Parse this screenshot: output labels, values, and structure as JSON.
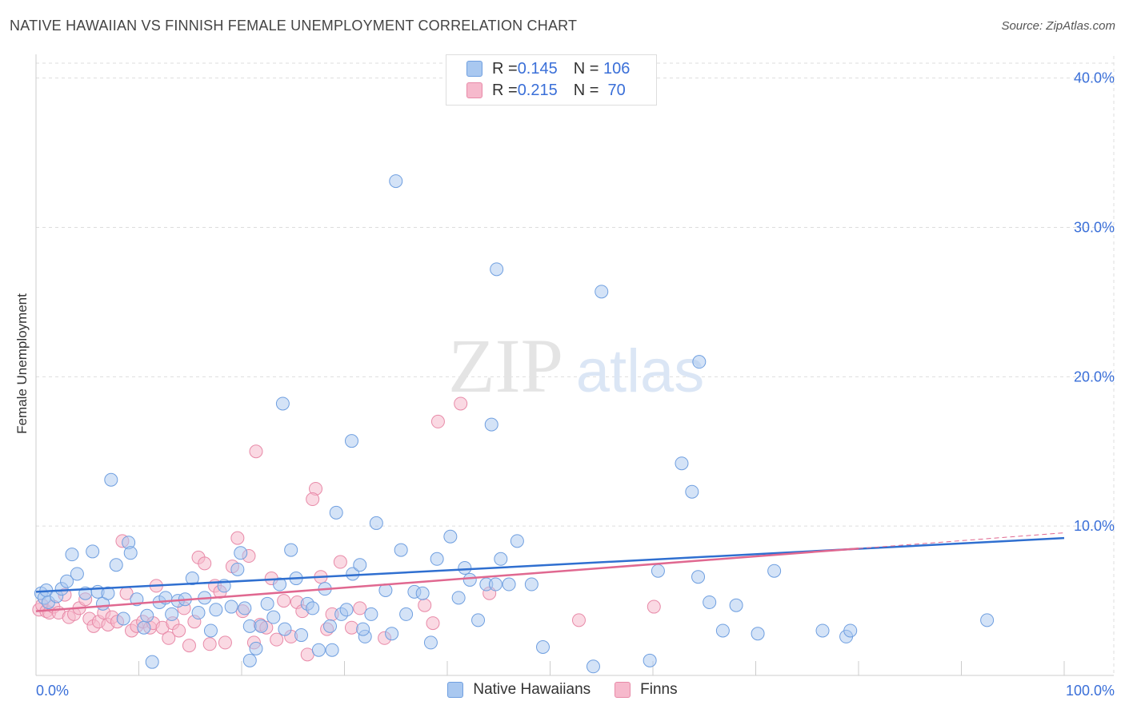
{
  "title": "NATIVE HAWAIIAN VS FINNISH FEMALE UNEMPLOYMENT CORRELATION CHART",
  "source": "Source: ZipAtlas.com",
  "watermark": {
    "zip": "ZIP",
    "atlas": "atlas"
  },
  "legend": {
    "rows": [
      {
        "r_label": "R = ",
        "r_value": "0.145",
        "n_label": "N = ",
        "n_value": "106",
        "color": "#a9c8f0",
        "border": "#6f9fe0"
      },
      {
        "r_label": "R = ",
        "r_value": "0.215",
        "n_label": "N = ",
        "n_value": " 70",
        "color": "#f6b9cc",
        "border": "#e88aa8"
      }
    ]
  },
  "colors": {
    "blue_fill": "#a9c8f0",
    "blue_stroke": "#6f9fe0",
    "blue_line": "#2f6fd0",
    "pink_fill": "#f6b9cc",
    "pink_stroke": "#e88aa8",
    "pink_line": "#e06890",
    "tick_label": "#3a6fd8",
    "grid": "#dddddd"
  },
  "chart_data": {
    "type": "scatter",
    "title": "NATIVE HAWAIIAN VS FINNISH FEMALE UNEMPLOYMENT CORRELATION CHART",
    "xlabel": "",
    "ylabel": "Female Unemployment",
    "xlim": [
      0,
      100
    ],
    "ylim": [
      0,
      41
    ],
    "x_tick_labels": [
      "0.0%",
      "100.0%"
    ],
    "y_ticks": [
      10,
      20,
      30,
      40
    ],
    "y_tick_labels": [
      "10.0%",
      "20.0%",
      "30.0%",
      "40.0%"
    ],
    "grid": true,
    "legend_position": "bottom",
    "series": [
      {
        "name": "Native Hawaiians",
        "r": 0.145,
        "n": 106,
        "trend": {
          "x": [
            0,
            100
          ],
          "y": [
            5.6,
            9.2
          ]
        },
        "points": [
          [
            0.5,
            5.5
          ],
          [
            0.8,
            5.2
          ],
          [
            1.0,
            5.7
          ],
          [
            1.2,
            4.9
          ],
          [
            2.0,
            5.3
          ],
          [
            2.5,
            5.8
          ],
          [
            3.0,
            6.3
          ],
          [
            3.5,
            8.1
          ],
          [
            4.0,
            6.8
          ],
          [
            4.8,
            5.5
          ],
          [
            5.5,
            8.3
          ],
          [
            6.0,
            5.6
          ],
          [
            6.5,
            4.8
          ],
          [
            7.0,
            5.5
          ],
          [
            7.3,
            13.1
          ],
          [
            7.8,
            7.4
          ],
          [
            8.5,
            3.8
          ],
          [
            9.0,
            8.9
          ],
          [
            9.2,
            8.2
          ],
          [
            9.8,
            5.1
          ],
          [
            10.5,
            3.2
          ],
          [
            10.8,
            4.0
          ],
          [
            11.3,
            0.9
          ],
          [
            12.0,
            4.9
          ],
          [
            12.6,
            5.2
          ],
          [
            13.2,
            4.1
          ],
          [
            13.8,
            5.0
          ],
          [
            14.5,
            5.1
          ],
          [
            15.2,
            6.5
          ],
          [
            15.8,
            4.2
          ],
          [
            16.4,
            5.2
          ],
          [
            17.0,
            3.0
          ],
          [
            17.5,
            4.4
          ],
          [
            18.3,
            6.0
          ],
          [
            19.0,
            4.6
          ],
          [
            19.6,
            7.1
          ],
          [
            19.9,
            8.2
          ],
          [
            20.3,
            4.5
          ],
          [
            20.8,
            3.3
          ],
          [
            21.4,
            1.8
          ],
          [
            21.9,
            3.3
          ],
          [
            22.5,
            4.8
          ],
          [
            23.1,
            3.9
          ],
          [
            23.7,
            6.1
          ],
          [
            24.2,
            3.1
          ],
          [
            24.8,
            8.4
          ],
          [
            25.3,
            6.5
          ],
          [
            25.8,
            2.7
          ],
          [
            26.4,
            4.8
          ],
          [
            26.9,
            4.5
          ],
          [
            27.5,
            1.7
          ],
          [
            28.1,
            5.8
          ],
          [
            28.6,
            3.3
          ],
          [
            29.2,
            10.9
          ],
          [
            29.7,
            4.1
          ],
          [
            30.2,
            4.4
          ],
          [
            30.8,
            6.8
          ],
          [
            31.5,
            7.4
          ],
          [
            32.0,
            2.6
          ],
          [
            32.6,
            4.1
          ],
          [
            24.0,
            18.2
          ],
          [
            31.8,
            3.1
          ],
          [
            33.1,
            10.2
          ],
          [
            34.0,
            5.7
          ],
          [
            34.6,
            2.8
          ],
          [
            35.5,
            8.4
          ],
          [
            36.0,
            4.1
          ],
          [
            36.8,
            5.6
          ],
          [
            37.6,
            5.5
          ],
          [
            38.4,
            2.2
          ],
          [
            39.0,
            7.8
          ],
          [
            40.3,
            9.3
          ],
          [
            41.1,
            5.2
          ],
          [
            41.7,
            7.2
          ],
          [
            42.2,
            6.4
          ],
          [
            43.0,
            3.7
          ],
          [
            43.8,
            6.1
          ],
          [
            44.7,
            6.1
          ],
          [
            45.2,
            7.8
          ],
          [
            46.0,
            6.1
          ],
          [
            46.8,
            9.0
          ],
          [
            48.2,
            6.1
          ],
          [
            49.3,
            1.9
          ],
          [
            54.2,
            0.6
          ],
          [
            59.7,
            1.0
          ],
          [
            35.0,
            33.1
          ],
          [
            44.8,
            27.2
          ],
          [
            55.0,
            25.7
          ],
          [
            64.5,
            21.0
          ],
          [
            62.8,
            14.2
          ],
          [
            63.8,
            12.3
          ],
          [
            60.5,
            7.0
          ],
          [
            64.4,
            6.6
          ],
          [
            65.5,
            4.9
          ],
          [
            66.8,
            3.0
          ],
          [
            68.1,
            4.7
          ],
          [
            70.2,
            2.8
          ],
          [
            71.8,
            7.0
          ],
          [
            76.5,
            3.0
          ],
          [
            78.8,
            2.6
          ],
          [
            79.2,
            3.0
          ],
          [
            92.5,
            3.7
          ],
          [
            20.8,
            1.0
          ],
          [
            28.8,
            1.7
          ],
          [
            30.7,
            15.7
          ],
          [
            44.3,
            16.8
          ]
        ]
      },
      {
        "name": "Finns",
        "r": 0.215,
        "n": 70,
        "trend": {
          "x": [
            0,
            80
          ],
          "y": [
            4.3,
            8.5
          ]
        },
        "points": [
          [
            0.3,
            4.4
          ],
          [
            0.6,
            4.7
          ],
          [
            1.0,
            4.3
          ],
          [
            1.3,
            4.2
          ],
          [
            1.7,
            4.6
          ],
          [
            2.2,
            4.2
          ],
          [
            2.8,
            5.4
          ],
          [
            3.2,
            3.9
          ],
          [
            3.7,
            4.1
          ],
          [
            4.2,
            4.5
          ],
          [
            4.8,
            5.1
          ],
          [
            5.2,
            3.8
          ],
          [
            5.6,
            3.3
          ],
          [
            6.1,
            3.6
          ],
          [
            6.6,
            4.2
          ],
          [
            7.0,
            3.4
          ],
          [
            7.4,
            3.9
          ],
          [
            7.9,
            3.6
          ],
          [
            8.4,
            9.0
          ],
          [
            8.8,
            5.5
          ],
          [
            9.3,
            3.0
          ],
          [
            9.8,
            3.3
          ],
          [
            10.4,
            3.6
          ],
          [
            11.1,
            3.2
          ],
          [
            11.4,
            3.5
          ],
          [
            11.7,
            6.0
          ],
          [
            12.3,
            3.2
          ],
          [
            12.9,
            2.5
          ],
          [
            13.3,
            3.5
          ],
          [
            13.9,
            3.0
          ],
          [
            14.4,
            4.5
          ],
          [
            14.9,
            2.0
          ],
          [
            15.4,
            3.6
          ],
          [
            15.8,
            7.9
          ],
          [
            16.4,
            7.5
          ],
          [
            16.9,
            2.1
          ],
          [
            17.4,
            6.0
          ],
          [
            17.9,
            5.6
          ],
          [
            18.4,
            2.2
          ],
          [
            19.1,
            7.3
          ],
          [
            19.6,
            9.2
          ],
          [
            20.1,
            4.3
          ],
          [
            20.7,
            8.0
          ],
          [
            21.2,
            2.2
          ],
          [
            21.8,
            3.4
          ],
          [
            22.4,
            3.2
          ],
          [
            22.9,
            6.5
          ],
          [
            23.4,
            2.4
          ],
          [
            24.1,
            5.0
          ],
          [
            24.8,
            2.6
          ],
          [
            25.4,
            4.9
          ],
          [
            25.9,
            4.3
          ],
          [
            26.4,
            1.4
          ],
          [
            27.2,
            12.5
          ],
          [
            27.7,
            6.6
          ],
          [
            28.3,
            3.1
          ],
          [
            28.8,
            4.1
          ],
          [
            29.6,
            7.6
          ],
          [
            30.7,
            3.2
          ],
          [
            31.5,
            4.5
          ],
          [
            26.9,
            11.8
          ],
          [
            21.4,
            15.0
          ],
          [
            41.3,
            18.2
          ],
          [
            39.1,
            17.0
          ],
          [
            33.9,
            2.5
          ],
          [
            37.8,
            4.7
          ],
          [
            38.6,
            3.5
          ],
          [
            44.1,
            5.5
          ],
          [
            52.8,
            3.7
          ],
          [
            60.1,
            4.6
          ]
        ]
      }
    ]
  },
  "bottom_legend": [
    {
      "label": "Native Hawaiians",
      "color": "#a9c8f0",
      "border": "#6f9fe0"
    },
    {
      "label": "Finns",
      "color": "#f6b9cc",
      "border": "#e88aa8"
    }
  ]
}
